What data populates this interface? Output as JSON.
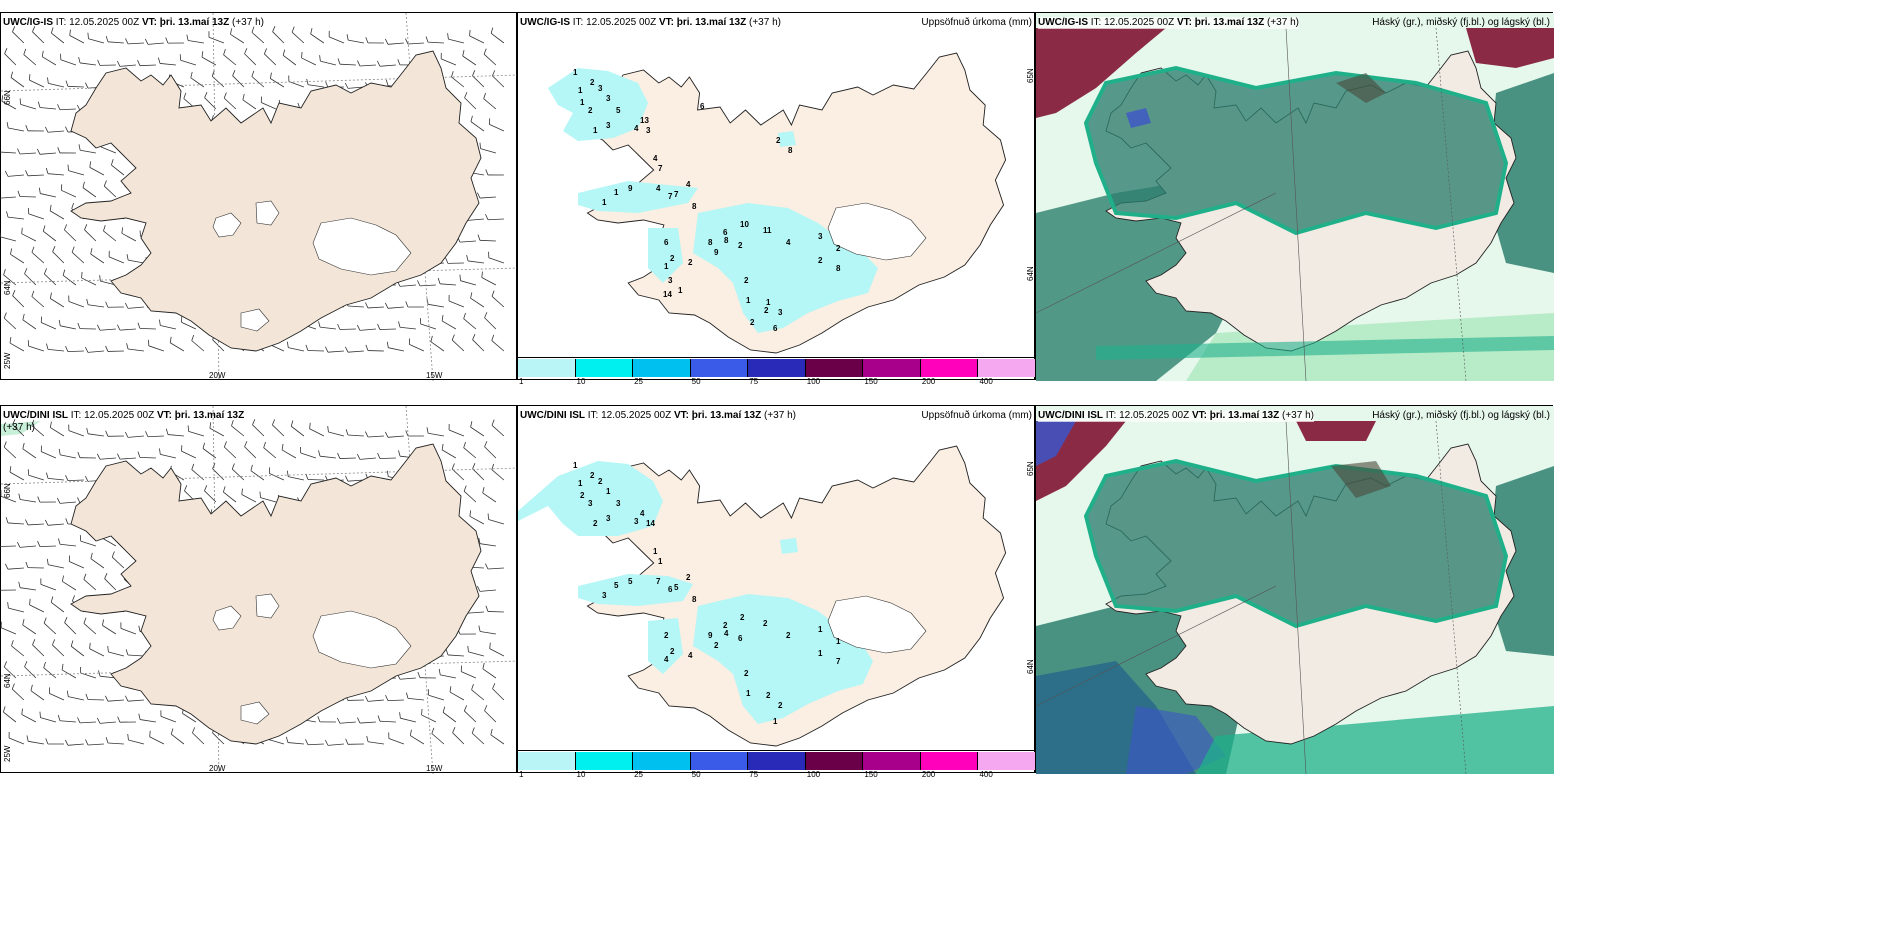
{
  "colors": {
    "land": "#f3e6d8",
    "land_cloud": "#f2ebe3",
    "coast": "#222222",
    "precip_light": "#b5f6f6",
    "cloud_high": "#2d7f6e",
    "cloud_mid": "#1fb08a",
    "cloud_low": "#c8f0d8",
    "cloud_red": "#8b2a45",
    "cloud_blue": "#3d55c8"
  },
  "rows": [
    {
      "wind_header": {
        "model": "UWC/IG-IS",
        "it": "IT: 12.05.2025 00Z",
        "vt_label": "VT:",
        "vt": "þri. 13.maí 13Z",
        "lead": "(+37 h)"
      },
      "precip_header": {
        "model": "UWC/IG-IS",
        "it": "IT: 12.05.2025 00Z",
        "vt_label": "VT:",
        "vt": "þri. 13.maí 13Z",
        "lead": "(+37 h)",
        "title": "Uppsöfnuð úrkoma (mm)"
      },
      "cloud_header": {
        "model": "UWC/IG-IS",
        "it": "IT: 12.05.2025 00Z",
        "vt_label": "VT:",
        "vt": "þri. 13.maí 13Z",
        "lead": "(+37 h)",
        "title": "Háský (gr.), miðský (fj.bl.) og lágský (bl.)"
      },
      "wind_lat_labels": [
        "66N",
        "64N",
        "25W"
      ],
      "wind_lon_labels": [
        "20W",
        "15W"
      ],
      "precip_lat_labels": [
        "65N",
        "64N"
      ],
      "precip_values": [
        "1",
        "1",
        "2",
        "3",
        "3",
        "1",
        "2",
        "5",
        "1",
        "3",
        "13",
        "4",
        "3",
        "4",
        "7",
        "1",
        "1",
        "9",
        "4",
        "7",
        "4",
        "7",
        "8",
        "6",
        "2",
        "1",
        "2",
        "8",
        "8",
        "10",
        "6",
        "2",
        "9",
        "11",
        "4",
        "3",
        "2",
        "2",
        "8",
        "2",
        "1",
        "1",
        "3",
        "6",
        "2",
        "2",
        "3",
        "1",
        "8",
        "2",
        "6",
        "14"
      ]
    },
    {
      "wind_header": {
        "model": "UWC/DINI ISL",
        "it": "IT: 12.05.2025 00Z",
        "vt_label": "VT:",
        "vt": "þri. 13.maí 13Z",
        "lead": "(+37 h)"
      },
      "precip_header": {
        "model": "UWC/DINI ISL",
        "it": "IT: 12.05.2025 00Z",
        "vt_label": "VT:",
        "vt": "þri. 13.maí 13Z",
        "lead": "(+37 h)",
        "title": "Uppsöfnuð úrkoma (mm)"
      },
      "cloud_header": {
        "model": "UWC/DINI ISL",
        "it": "IT: 12.05.2025 00Z",
        "vt_label": "VT:",
        "vt": "þri. 13.maí 13Z",
        "lead": "(+37 h)",
        "title": "Háský (gr.), miðský (fj.bl.) og lágský (bl.)"
      },
      "wind_lat_labels": [
        "66N",
        "64N",
        "25W"
      ],
      "wind_lon_labels": [
        "20W",
        "15W"
      ],
      "precip_lat_labels": [
        "65N",
        "64N"
      ],
      "precip_values": [
        "1",
        "1",
        "2",
        "2",
        "1",
        "2",
        "3",
        "3",
        "2",
        "3",
        "4",
        "3",
        "14",
        "1",
        "1",
        "3",
        "5",
        "5",
        "7",
        "6",
        "2",
        "5",
        "8",
        "2",
        "2",
        "4",
        "4",
        "9",
        "4",
        "2",
        "2",
        "6",
        "2",
        "2",
        "2",
        "1",
        "1",
        "1",
        "7",
        "2",
        "1",
        "2",
        "2",
        "1"
      ]
    }
  ],
  "legend": {
    "labels": [
      "1",
      "10",
      "25",
      "50",
      "75",
      "100",
      "150",
      "200",
      "400"
    ],
    "colors": [
      "#b9f5f7",
      "#00f0f0",
      "#00c0f0",
      "#3a5ae8",
      "#2a2ab8",
      "#6a0048",
      "#a8008a",
      "#ff00bb",
      "#f5a8f0"
    ]
  }
}
